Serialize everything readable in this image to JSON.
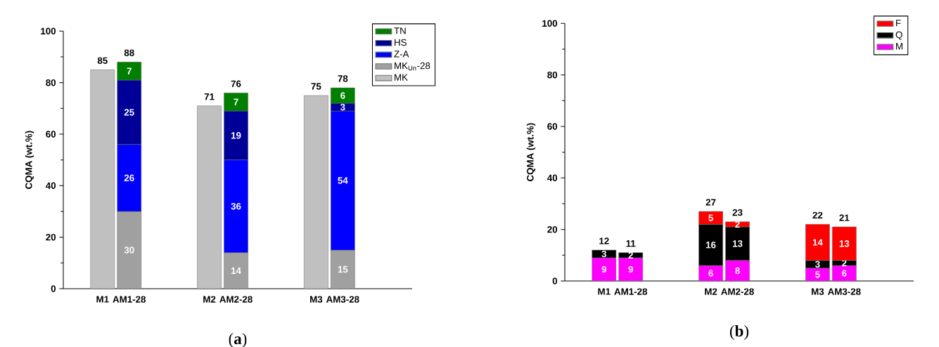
{
  "chart_data": [
    {
      "type": "bar",
      "stacked": true,
      "ylabel": "CQMA (wt.%)",
      "categories": [
        "M1",
        "AM1-28",
        "M2",
        "AM2-28",
        "M3",
        "AM3-28"
      ],
      "ylim": [
        0,
        100
      ],
      "yticks": [
        0,
        20,
        40,
        60,
        80,
        100
      ],
      "legend": "top right",
      "annotations": [
        "(**a**)"
      ],
      "series": [
        {
          "name": "MK",
          "color": "#c0c0c0",
          "values": [
            85,
            null,
            71,
            null,
            75,
            null
          ]
        },
        {
          "name": "MK$_{Un}$-28",
          "color": "#a0a0a0",
          "values": [
            null,
            30,
            null,
            14,
            null,
            15
          ],
          "value_labels": [
            null,
            "30",
            null,
            "14",
            null,
            "15"
          ]
        },
        {
          "name": "Z-A",
          "color": "#0000ff",
          "values": [
            null,
            26,
            null,
            36,
            null,
            54
          ],
          "value_labels": [
            null,
            "26",
            null,
            "36",
            null,
            "54"
          ]
        },
        {
          "name": "HS",
          "color": "#000099",
          "values": [
            null,
            25,
            null,
            19,
            null,
            3
          ],
          "value_labels": [
            null,
            "25",
            null,
            "19",
            null,
            "3"
          ]
        },
        {
          "name": "TN",
          "color": "#007f00",
          "values": [
            null,
            7,
            null,
            7,
            null,
            6
          ],
          "value_labels": [
            null,
            "7",
            null,
            "7",
            null,
            "6"
          ]
        }
      ],
      "totals": [
        "85",
        "88",
        "71",
        "76",
        "75",
        "78"
      ]
    },
    {
      "type": "bar",
      "stacked": true,
      "ylabel": "CQMA (wt.%)",
      "categories": [
        "M1",
        "AM1-28",
        "M2",
        "AM2-28",
        "M3",
        "AM3-28"
      ],
      "ylim": [
        0,
        100
      ],
      "yticks": [
        0,
        20,
        40,
        60,
        80,
        100
      ],
      "legend": "top right",
      "annotations": [
        "(**b**)"
      ],
      "series": [
        {
          "name": "M",
          "color": "#ff00ff",
          "values": [
            9,
            9,
            6,
            8,
            5,
            6
          ],
          "value_labels": [
            "9",
            "9",
            "6",
            "8",
            "5",
            "6"
          ]
        },
        {
          "name": "Q",
          "color": "#000000",
          "values": [
            3,
            2,
            16,
            13,
            3,
            2
          ],
          "value_labels": [
            "3",
            "2",
            "16",
            "13",
            "3",
            "2"
          ]
        },
        {
          "name": "F",
          "color": "#ff0000",
          "values": [
            null,
            null,
            5,
            2,
            14,
            13
          ],
          "value_labels": [
            null,
            null,
            "5",
            "2",
            "14",
            "13"
          ]
        }
      ],
      "totals": [
        "12",
        "11",
        "27",
        "23",
        "22",
        "21"
      ]
    }
  ]
}
